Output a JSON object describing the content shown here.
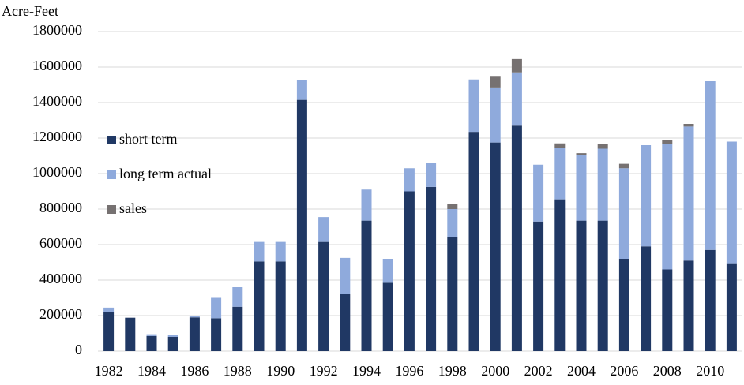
{
  "chart_data": {
    "type": "stacked_bar",
    "y_label": "Acre-Feet",
    "categories": [
      "1982",
      null,
      "1984",
      null,
      "1986",
      null,
      "1988",
      null,
      "1990",
      null,
      "1992",
      null,
      "1994",
      null,
      "1996",
      null,
      "1998",
      null,
      "2000",
      null,
      "2002",
      null,
      "2004",
      null,
      "2006",
      null,
      "2008",
      null,
      "2010",
      null
    ],
    "series": [
      {
        "name": "short term",
        "color": "#203864",
        "values": [
          218000,
          188000,
          85000,
          80000,
          190000,
          185000,
          250000,
          505000,
          505000,
          1415000,
          615000,
          320000,
          735000,
          385000,
          900000,
          925000,
          640000,
          1235000,
          1175000,
          1270000,
          730000,
          855000,
          735000,
          735000,
          520000,
          590000,
          460000,
          510000,
          570000,
          495000
        ]
      },
      {
        "name": "long term actual",
        "color": "#8faadc",
        "values": [
          27000,
          0,
          10000,
          10000,
          10000,
          115000,
          110000,
          110000,
          110000,
          110000,
          140000,
          205000,
          175000,
          135000,
          130000,
          135000,
          160000,
          295000,
          310000,
          300000,
          320000,
          290000,
          370000,
          405000,
          510000,
          570000,
          705000,
          755000,
          950000,
          685000
        ]
      },
      {
        "name": "sales",
        "color": "#767171",
        "values": [
          0,
          0,
          0,
          0,
          0,
          0,
          0,
          0,
          0,
          0,
          0,
          0,
          0,
          0,
          0,
          0,
          30000,
          0,
          65000,
          75000,
          0,
          25000,
          10000,
          25000,
          25000,
          0,
          25000,
          15000,
          0,
          0
        ]
      }
    ],
    "ylim": [
      0,
      1800000
    ],
    "yticks": [
      0,
      200000,
      400000,
      600000,
      800000,
      1000000,
      1200000,
      1400000,
      1600000,
      1800000
    ],
    "grid": true,
    "legend": "left"
  }
}
